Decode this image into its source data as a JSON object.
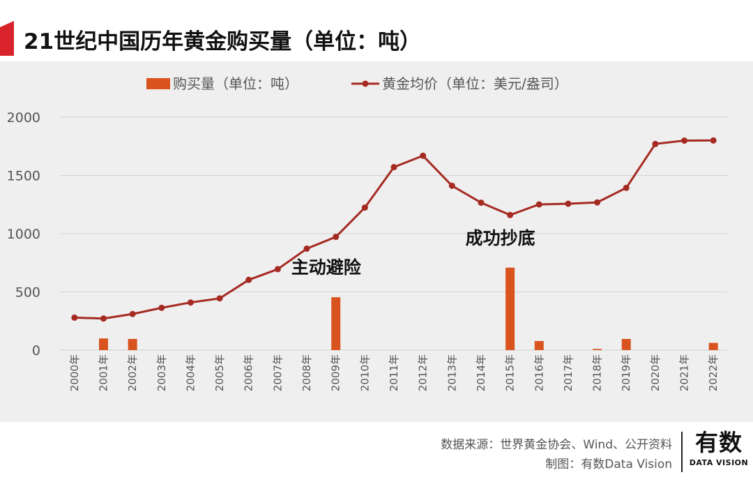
{
  "header": {
    "title": "21世纪中国历年黄金购买量（单位：吨）"
  },
  "footer": {
    "source": "数据来源：世界黄金协会、Wind、公开资料",
    "credit": "制图：有数Data Vision",
    "logo_main": "有数",
    "logo_sub": "DATA VISION"
  },
  "colors": {
    "accent": "#d8232a",
    "bar": "#d9531e",
    "line": "#a52a22",
    "background": "#efefef"
  },
  "chart_data": {
    "type": "bar+line",
    "categories": [
      "2000年",
      "2001年",
      "2002年",
      "2003年",
      "2004年",
      "2005年",
      "2006年",
      "2007年",
      "2008年",
      "2009年",
      "2010年",
      "2011年",
      "2012年",
      "2013年",
      "2014年",
      "2015年",
      "2016年",
      "2017年",
      "2018年",
      "2019年",
      "2020年",
      "2021年",
      "2022年"
    ],
    "series": [
      {
        "name": "购买量（单位：吨）",
        "type": "bar",
        "values": [
          0,
          100,
          96,
          0,
          0,
          0,
          0,
          0,
          0,
          454,
          0,
          0,
          0,
          0,
          0,
          708,
          78,
          0,
          10,
          96,
          0,
          0,
          62
        ]
      },
      {
        "name": "黄金均价（单位：美元/盎司）",
        "type": "line",
        "values": [
          279,
          271,
          310,
          363,
          409,
          444,
          603,
          695,
          871,
          972,
          1224,
          1571,
          1669,
          1411,
          1266,
          1160,
          1251,
          1257,
          1268,
          1393,
          1770,
          1799,
          1800
        ]
      }
    ],
    "yticks": [
      "0",
      "500",
      "1000",
      "1500",
      "2000"
    ],
    "ylim": [
      0,
      2000
    ],
    "grid": true,
    "legend_position": "top",
    "annotations": [
      {
        "text": "主动避险",
        "category": "2009年"
      },
      {
        "text": "成功抄底",
        "category": "2015年"
      }
    ]
  }
}
